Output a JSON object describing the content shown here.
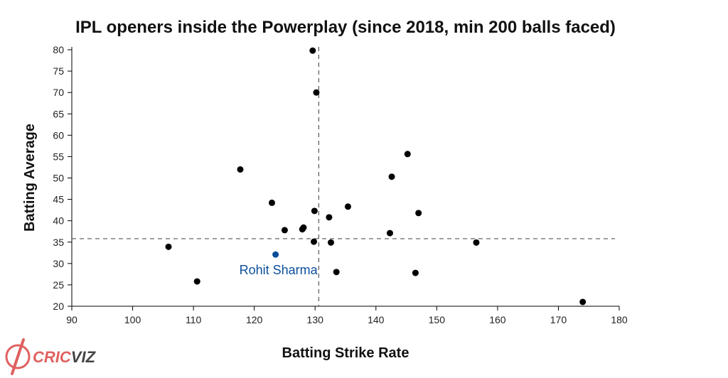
{
  "chart_data": {
    "type": "scatter",
    "title": "IPL openers inside the Powerplay (since 2018, min 200 balls faced)",
    "xlabel": "Batting Strike Rate",
    "ylabel": "Batting Average",
    "xlim": [
      90,
      180
    ],
    "ylim": [
      20,
      80
    ],
    "x_ticks": [
      90,
      100,
      110,
      120,
      130,
      140,
      150,
      160,
      170,
      180
    ],
    "y_ticks": [
      20,
      25,
      30,
      35,
      40,
      45,
      50,
      55,
      60,
      65,
      70,
      75,
      80
    ],
    "grid": false,
    "reference_lines": {
      "x": 130.6,
      "y": 35.8
    },
    "points": [
      {
        "x": 129.6,
        "y": 79.8
      },
      {
        "x": 130.2,
        "y": 70.0
      },
      {
        "x": 117.7,
        "y": 52.0
      },
      {
        "x": 145.2,
        "y": 55.6
      },
      {
        "x": 142.6,
        "y": 50.3
      },
      {
        "x": 122.9,
        "y": 44.2
      },
      {
        "x": 135.4,
        "y": 43.3
      },
      {
        "x": 129.9,
        "y": 42.3
      },
      {
        "x": 147.0,
        "y": 41.8
      },
      {
        "x": 132.3,
        "y": 40.8
      },
      {
        "x": 128.1,
        "y": 38.4
      },
      {
        "x": 127.9,
        "y": 38.0
      },
      {
        "x": 125.0,
        "y": 37.8
      },
      {
        "x": 142.3,
        "y": 37.1
      },
      {
        "x": 129.8,
        "y": 35.1
      },
      {
        "x": 132.6,
        "y": 34.9
      },
      {
        "x": 156.5,
        "y": 34.9
      },
      {
        "x": 105.9,
        "y": 33.9
      },
      {
        "x": 133.5,
        "y": 28.0
      },
      {
        "x": 146.5,
        "y": 27.8
      },
      {
        "x": 110.6,
        "y": 25.8
      },
      {
        "x": 174.0,
        "y": 21.0
      }
    ],
    "highlight": {
      "label": "Rohit Sharma",
      "x": 123.5,
      "y": 32.1,
      "color": "#0b4f9c"
    },
    "point_color": "#000000",
    "reference_line_color": "#555555"
  },
  "branding": {
    "logo_text_a": "CRIC",
    "logo_text_b": "VIZ",
    "logo_color": "#e06060"
  }
}
